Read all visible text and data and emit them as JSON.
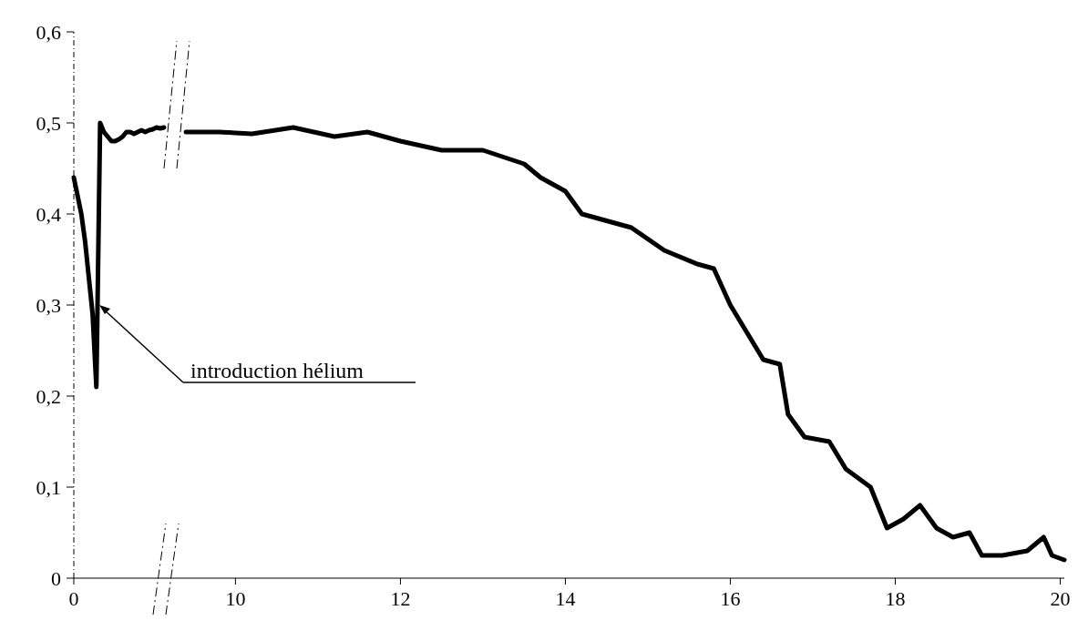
{
  "chart_data": [
    {
      "type": "line",
      "categories": [
        "0",
        null,
        null,
        null,
        null,
        null,
        null,
        null,
        null,
        null,
        null,
        null,
        null,
        null,
        null,
        null,
        null,
        null,
        null,
        null,
        null,
        null,
        null,
        null,
        null
      ],
      "ylim": [
        0,
        0.6
      ],
      "yticks": [
        {
          "value": 0,
          "label": "0"
        },
        {
          "value": 0.1,
          "label": "0,1"
        },
        {
          "value": 0.2,
          "label": "0,2"
        },
        {
          "value": 0.3,
          "label": "0,3"
        },
        {
          "value": 0.4,
          "label": "0,4"
        },
        {
          "value": 0.5,
          "label": "0,5"
        },
        {
          "value": 0.6,
          "label": "0,6"
        }
      ],
      "series": [
        {
          "color": "#000000",
          "values": [
            0.44,
            0.42,
            0.4,
            0.37,
            0.33,
            0.29,
            0.21,
            0.5,
            0.49,
            0.485,
            0.48,
            0.48,
            0.482,
            0.485,
            0.49,
            0.49,
            0.488,
            0.49,
            0.492,
            0.49,
            0.492,
            0.493,
            0.495,
            0.494,
            0.495
          ]
        }
      ],
      "annotations": [
        "introduction hélium"
      ]
    },
    {
      "type": "line",
      "xlim": [
        9.2,
        20.05
      ],
      "xticks": [
        10,
        12,
        14,
        16,
        18,
        20
      ],
      "ylim": [
        0,
        0.6
      ],
      "tick_labels": "x",
      "series": [
        {
          "color": "#000000",
          "x": [
            9.4,
            9.8,
            10.2,
            10.7,
            11.2,
            11.6,
            12,
            12.5,
            13,
            13.5,
            13.7,
            14,
            14.2,
            14.8,
            15.2,
            15.6,
            15.8,
            16,
            16.2,
            16.4,
            16.6,
            16.7,
            16.9,
            17.2,
            17.4,
            17.7,
            17.9,
            18.1,
            18.3,
            18.5,
            18.7,
            18.9,
            19.05,
            19.3,
            19.6,
            19.8,
            19.9,
            20.05
          ],
          "values": [
            0.49,
            0.49,
            0.488,
            0.495,
            0.485,
            0.49,
            0.48,
            0.47,
            0.47,
            0.455,
            0.44,
            0.425,
            0.4,
            0.385,
            0.36,
            0.345,
            0.34,
            0.3,
            0.27,
            0.24,
            0.235,
            0.18,
            0.155,
            0.15,
            0.12,
            0.1,
            0.055,
            0.065,
            0.08,
            0.055,
            0.045,
            0.05,
            0.025,
            0.025,
            0.03,
            0.045,
            0.025,
            0.02
          ]
        }
      ]
    }
  ]
}
